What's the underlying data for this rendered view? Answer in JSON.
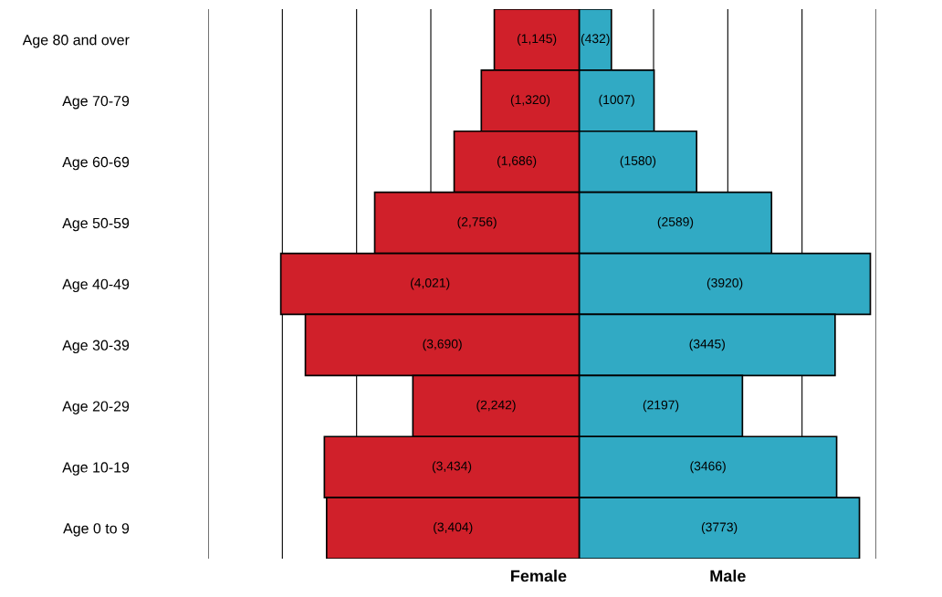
{
  "chart_data": {
    "type": "bar",
    "orientation": "horizontal",
    "stacked": true,
    "categories": [
      "Age 80 and over",
      "Age 70-79",
      "Age 60-69",
      "Age 50-59",
      "Age 40-49",
      "Age 30-39",
      "Age 20-29",
      "Age 10-19",
      "Age 0 to 9"
    ],
    "series": [
      {
        "name": "Female",
        "color": "#d0202a",
        "values": [
          -1145,
          -1320,
          -1686,
          -2756,
          -4021,
          -3690,
          -2242,
          -3434,
          -3404
        ],
        "value_labels": [
          "(1,145)",
          "(1,320)",
          "(1,686)",
          "(2,756)",
          "(4,021)",
          "(3,690)",
          "(2,242)",
          "(3,434)",
          "(3,404)"
        ]
      },
      {
        "name": "Male",
        "color": "#31aac4",
        "values": [
          432,
          1007,
          1580,
          2589,
          3920,
          3445,
          2197,
          3466,
          3773
        ],
        "value_labels": [
          "(432)",
          "(1007)",
          "(1580)",
          "(2589)",
          "(3920)",
          "(3445)",
          "(2197)",
          "(3466)",
          "(3773)"
        ]
      }
    ],
    "xlim": [
      -5000,
      4000
    ],
    "xticks": [
      {
        "value": -5000,
        "label": null
      },
      {
        "value": -4000,
        "label": null
      },
      {
        "value": -3000,
        "label": null
      },
      {
        "value": -2000,
        "label": null
      },
      {
        "value": 1000,
        "label": null
      },
      {
        "value": 2000,
        "label": null
      },
      {
        "value": 3000,
        "label": null
      },
      {
        "value": 4000,
        "label": null
      }
    ],
    "grid": "x",
    "legend": false,
    "tick_labels": "y"
  }
}
